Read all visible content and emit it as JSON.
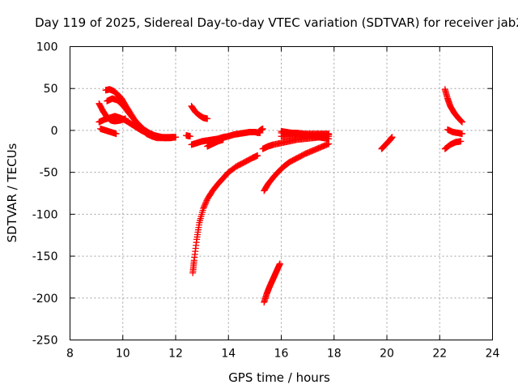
{
  "chart_data": {
    "type": "scatter",
    "title": "Day 119 of 2025, Sidereal Day-to-day VTEC variation (SDTVAR) for receiver jab2",
    "xlabel": "GPS time / hours",
    "ylabel": "SDTVAR / TECUs",
    "xlim": [
      8,
      24
    ],
    "ylim": [
      -250,
      100
    ],
    "xticks": [
      "8",
      "10",
      "12",
      "14",
      "16",
      "18",
      "20",
      "22",
      "24"
    ],
    "yticks": [
      "100",
      "50",
      "0",
      "-50",
      "-100",
      "-150",
      "-200",
      "-250"
    ],
    "grid": true,
    "marker": "plus",
    "color": "#ff0000",
    "series": [
      {
        "x": [
          9.1,
          9.3,
          9.5,
          9.7,
          9.9,
          10.1,
          10.3,
          10.5,
          10.7,
          10.9,
          11.2,
          11.5,
          11.8,
          12.0
        ],
        "y": [
          10,
          13,
          15,
          17,
          15,
          12,
          8,
          4,
          0,
          -3,
          -6,
          -8,
          -8,
          -8
        ]
      },
      {
        "x": [
          9.35,
          9.5,
          9.65,
          9.8,
          9.95,
          10.1,
          10.3,
          10.5,
          10.7,
          10.9,
          11.1,
          11.3,
          11.6,
          11.9
        ],
        "y": [
          48,
          49,
          47,
          43,
          38,
          30,
          20,
          10,
          2,
          -4,
          -7,
          -9,
          -9,
          -8
        ]
      },
      {
        "x": [
          9.1,
          9.25,
          9.4,
          9.55,
          9.7,
          9.9,
          10.1
        ],
        "y": [
          32,
          23,
          16,
          12,
          11,
          12,
          14
        ]
      },
      {
        "x": [
          9.15,
          9.35,
          9.55,
          9.75
        ],
        "y": [
          2,
          0,
          -2,
          -4
        ]
      },
      {
        "x": [
          9.4,
          9.6,
          9.8,
          10.0,
          10.2,
          10.4,
          10.6,
          10.8,
          11.0,
          11.2,
          11.4,
          11.6,
          11.8,
          12.0
        ],
        "y": [
          35,
          38,
          36,
          30,
          22,
          14,
          7,
          1,
          -3,
          -6,
          -8,
          -9,
          -9,
          -8
        ]
      },
      {
        "x": [
          12.4,
          12.55
        ],
        "y": [
          -6,
          -7
        ]
      },
      {
        "x": [
          12.6,
          12.75,
          12.9,
          13.05,
          13.2
        ],
        "y": [
          29,
          22,
          18,
          15,
          14
        ]
      },
      {
        "x": [
          12.6,
          12.8,
          13.0,
          13.2,
          13.4,
          13.6,
          13.8,
          14.0,
          14.2,
          14.4,
          14.6,
          14.8,
          15.0,
          15.2
        ],
        "y": [
          -17,
          -15,
          -13,
          -12,
          -11,
          -10,
          -8,
          -7,
          -5,
          -4,
          -3,
          -2,
          -2,
          -3
        ]
      },
      {
        "x": [
          13.2,
          13.4,
          13.6,
          13.8
        ],
        "y": [
          -19,
          -16,
          -13,
          -11
        ]
      },
      {
        "x": [
          12.65,
          12.7,
          12.8,
          12.9,
          13.05,
          13.2,
          13.4,
          13.6,
          13.8,
          14.0,
          14.3,
          14.6,
          14.9,
          15.1
        ],
        "y": [
          -170,
          -155,
          -130,
          -110,
          -93,
          -82,
          -72,
          -64,
          -57,
          -50,
          -43,
          -38,
          -33,
          -30
        ]
      },
      {
        "x": [
          15.1,
          15.2,
          15.3
        ],
        "y": [
          -3,
          0,
          2
        ]
      },
      {
        "x": [
          15.35,
          15.45,
          15.55,
          15.65,
          15.75,
          15.85,
          15.95
        ],
        "y": [
          -205,
          -195,
          -187,
          -180,
          -173,
          -166,
          -159
        ]
      },
      {
        "x": [
          15.35,
          15.5,
          15.7,
          15.9,
          16.1,
          16.3,
          16.6,
          16.9,
          17.2,
          17.5,
          17.8
        ],
        "y": [
          -72,
          -64,
          -56,
          -49,
          -43,
          -38,
          -33,
          -28,
          -24,
          -20,
          -16
        ]
      },
      {
        "x": [
          15.3,
          15.5,
          15.7,
          16.0,
          16.3,
          16.6,
          16.9,
          17.2,
          17.5,
          17.8
        ],
        "y": [
          -22,
          -19,
          -17,
          -15,
          -13,
          -11,
          -10,
          -9,
          -8,
          -7
        ]
      },
      {
        "x": [
          16.0,
          16.3,
          16.6,
          16.9,
          17.2,
          17.5,
          17.8
        ],
        "y": [
          -3,
          -3,
          -3,
          -4,
          -4,
          -4,
          -4
        ]
      },
      {
        "x": [
          16.0,
          16.3,
          16.6,
          16.9,
          17.2,
          17.5,
          17.8
        ],
        "y": [
          -7,
          -7,
          -6,
          -6,
          -6,
          -5,
          -5
        ]
      },
      {
        "x": [
          16.0,
          16.2,
          16.4,
          16.6,
          16.8,
          17.0,
          17.2,
          17.4,
          17.6,
          17.8
        ],
        "y": [
          -1,
          -2,
          -3,
          -4,
          -5,
          -6,
          -7,
          -8,
          -9,
          -10
        ]
      },
      {
        "x": [
          19.8,
          19.95,
          20.1,
          20.2
        ],
        "y": [
          -22,
          -17,
          -12,
          -8
        ]
      },
      {
        "x": [
          22.2,
          22.3,
          22.4,
          22.55,
          22.7,
          22.85
        ],
        "y": [
          49,
          38,
          29,
          21,
          15,
          10
        ]
      },
      {
        "x": [
          22.2,
          22.4,
          22.6,
          22.8
        ],
        "y": [
          -22,
          -17,
          -14,
          -13
        ]
      },
      {
        "x": [
          22.3,
          22.5,
          22.7,
          22.85
        ],
        "y": [
          1,
          -2,
          -3,
          -4
        ]
      }
    ]
  }
}
